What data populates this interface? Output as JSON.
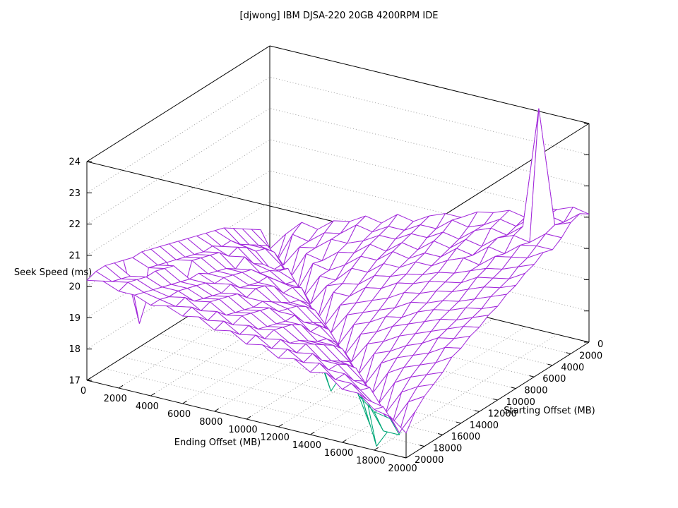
{
  "page": {
    "background": "#ffffff"
  },
  "chart_data": {
    "type": "surface3d-wireframe",
    "title": "[djwong] IBM DJSA-220 20GB 4200RPM IDE",
    "xlabel": "Ending Offset (MB)",
    "ylabel": "Starting Offset (MB)",
    "zlabel": "Seek Speed (ms)",
    "x_range": [
      0,
      20000
    ],
    "y_range": [
      0,
      20000
    ],
    "z_range": [
      17,
      24
    ],
    "x_ticks": [
      0,
      2000,
      4000,
      6000,
      8000,
      10000,
      12000,
      14000,
      16000,
      18000,
      20000
    ],
    "y_ticks": [
      0,
      2000,
      4000,
      6000,
      8000,
      10000,
      12000,
      14000,
      16000,
      18000,
      20000
    ],
    "z_ticks": [
      17,
      18,
      19,
      20,
      21,
      22,
      23,
      24
    ],
    "grid": true,
    "legend": "none",
    "axis_color": "#000000",
    "grid_color": "#a0a0a0",
    "peak": {
      "ending_mb": 18000,
      "starting_mb": 2000,
      "value_ms": 24.6
    },
    "series": [
      {
        "name": "seek-speed-surface",
        "color": "#a229db",
        "grid_step_mb": 1000,
        "rows": "starting-offset 0..20000 step 1000",
        "cols": "ending-offset 0..20000 step 1000",
        "values": [
          [
            17.5,
            18.1,
            18.6,
            18.5,
            18.9,
            19.0,
            19.3,
            19.2,
            19.6,
            19.5,
            19.8,
            20.0,
            20.0,
            20.3,
            20.4,
            20.6,
            20.5,
            20.9,
            21.0,
            21.2,
            21.1
          ],
          [
            18.3,
            17.4,
            18.4,
            18.3,
            18.7,
            18.8,
            19.2,
            19.1,
            19.4,
            19.4,
            19.7,
            19.7,
            20.1,
            20.0,
            20.2,
            20.5,
            20.4,
            20.8,
            21.0,
            20.9,
            21.3
          ],
          [
            18.5,
            18.1,
            17.6,
            18.3,
            18.4,
            18.8,
            18.8,
            19.0,
            19.3,
            19.3,
            19.6,
            19.6,
            19.9,
            19.8,
            20.2,
            20.4,
            20.3,
            20.7,
            24.6,
            21.0,
            21.2
          ],
          [
            18.7,
            18.3,
            18.2,
            17.5,
            18.4,
            18.3,
            18.7,
            18.8,
            19.2,
            19.1,
            19.5,
            19.4,
            19.8,
            19.7,
            20.1,
            20.0,
            20.4,
            20.6,
            20.5,
            20.9,
            20.9
          ],
          [
            18.9,
            18.5,
            18.5,
            18.1,
            17.4,
            18.4,
            18.3,
            18.6,
            19.0,
            19.0,
            19.4,
            19.3,
            19.6,
            19.6,
            20.0,
            19.9,
            20.3,
            20.2,
            20.6,
            20.7,
            20.7
          ],
          [
            19.1,
            18.7,
            18.6,
            18.1,
            18.3,
            17.5,
            18.3,
            18.3,
            18.8,
            18.8,
            19.2,
            19.2,
            19.5,
            19.5,
            19.8,
            20.0,
            19.9,
            20.3,
            20.4,
            20.5,
            20.8
          ],
          [
            19.2,
            19.0,
            18.9,
            18.5,
            18.4,
            18.2,
            17.6,
            18.3,
            18.5,
            18.6,
            19.0,
            19.1,
            19.3,
            19.4,
            19.6,
            19.7,
            19.9,
            20.1,
            20.2,
            20.4,
            20.6
          ],
          [
            19.3,
            19.0,
            19.1,
            18.7,
            18.6,
            18.3,
            18.3,
            17.4,
            18.4,
            18.4,
            18.8,
            18.9,
            19.2,
            19.3,
            19.5,
            19.6,
            19.7,
            20.0,
            20.1,
            20.2,
            20.5
          ],
          [
            19.4,
            19.2,
            19.0,
            19.1,
            18.7,
            18.6,
            18.5,
            18.1,
            17.5,
            18.3,
            18.5,
            18.7,
            18.9,
            19.2,
            19.3,
            19.5,
            19.6,
            19.8,
            20.0,
            20.1,
            20.3
          ],
          [
            19.5,
            19.2,
            19.3,
            18.9,
            19.0,
            18.9,
            18.5,
            18.4,
            18.2,
            17.6,
            18.3,
            18.5,
            18.7,
            18.9,
            19.2,
            19.3,
            19.5,
            19.6,
            19.8,
            20.0,
            20.2
          ],
          [
            19.6,
            19.3,
            19.4,
            19.1,
            19.1,
            18.9,
            18.9,
            18.5,
            18.5,
            18.1,
            17.5,
            18.3,
            18.5,
            18.8,
            18.9,
            19.2,
            19.4,
            19.5,
            19.7,
            19.8,
            20.0
          ],
          [
            19.7,
            19.4,
            19.5,
            19.2,
            19.2,
            19.0,
            19.1,
            18.7,
            18.7,
            18.3,
            18.2,
            17.5,
            18.3,
            18.5,
            18.8,
            19.0,
            19.2,
            19.4,
            19.5,
            19.7,
            19.9
          ],
          [
            19.8,
            19.5,
            19.6,
            19.3,
            19.3,
            19.1,
            19.2,
            18.9,
            18.8,
            18.5,
            18.5,
            18.1,
            17.6,
            18.3,
            18.5,
            18.8,
            19.0,
            19.2,
            19.4,
            19.6,
            19.7
          ],
          [
            19.9,
            19.6,
            18.7,
            19.5,
            19.3,
            19.4,
            19.1,
            19.1,
            18.9,
            18.9,
            18.5,
            18.4,
            18.2,
            17.5,
            18.3,
            18.5,
            18.8,
            19.0,
            19.3,
            19.4,
            19.6
          ],
          [
            20.0,
            19.7,
            19.8,
            19.5,
            19.5,
            19.3,
            19.4,
            19.1,
            19.2,
            18.9,
            18.9,
            18.5,
            18.5,
            18.1,
            17.5,
            18.3,
            18.6,
            18.8,
            19.0,
            19.3,
            19.4
          ],
          [
            20.0,
            19.8,
            19.9,
            19.6,
            19.6,
            19.4,
            19.5,
            19.2,
            19.3,
            19.0,
            19.1,
            18.7,
            18.7,
            18.3,
            18.2,
            17.5,
            18.3,
            18.6,
            18.8,
            19.0,
            19.3
          ],
          [
            20.1,
            18.2,
            20.0,
            19.7,
            19.7,
            19.5,
            19.6,
            19.3,
            19.4,
            19.1,
            19.2,
            18.9,
            18.9,
            18.5,
            18.5,
            18.1,
            17.5,
            18.3,
            18.6,
            18.8,
            19.0
          ],
          [
            20.2,
            19.9,
            20.0,
            19.8,
            19.8,
            19.6,
            19.7,
            19.4,
            19.5,
            19.2,
            19.3,
            19.0,
            19.1,
            18.7,
            18.7,
            18.3,
            18.2,
            17.5,
            18.3,
            18.6,
            18.8
          ],
          [
            20.3,
            20.0,
            20.1,
            19.9,
            19.8,
            19.9,
            19.6,
            19.7,
            19.4,
            19.5,
            19.2,
            19.3,
            19.0,
            19.1,
            18.7,
            18.7,
            18.3,
            17.9,
            17.5,
            18.3,
            18.6
          ],
          [
            20.3,
            20.1,
            20.2,
            20.0,
            19.9,
            19.8,
            19.9,
            19.6,
            19.7,
            19.4,
            19.5,
            19.2,
            19.3,
            19.0,
            19.1,
            18.7,
            18.7,
            18.3,
            18.2,
            17.5,
            18.3
          ],
          [
            20.2,
            20.3,
            20.1,
            20.1,
            19.9,
            20.0,
            19.8,
            19.9,
            19.6,
            19.7,
            19.4,
            19.5,
            19.2,
            19.3,
            19.0,
            19.1,
            18.7,
            18.7,
            18.3,
            18.2,
            17.8
          ]
        ]
      },
      {
        "name": "underlying-min-surface",
        "color": "#00a878",
        "offset_from_primary": -0.07,
        "dips": [
          [
            3,
            2,
            0.5
          ],
          [
            5,
            3,
            0.6
          ],
          [
            14,
            1,
            1.1
          ],
          [
            13,
            5,
            1.2
          ],
          [
            12,
            8,
            0.8
          ],
          [
            16,
            13,
            0.9
          ],
          [
            17,
            16,
            1.1
          ],
          [
            18,
            17,
            1.2
          ],
          [
            19,
            18,
            0.7
          ],
          [
            1,
            16,
            0.6
          ],
          [
            2,
            15,
            0.5
          ],
          [
            14,
            13,
            0.6
          ]
        ]
      }
    ]
  }
}
